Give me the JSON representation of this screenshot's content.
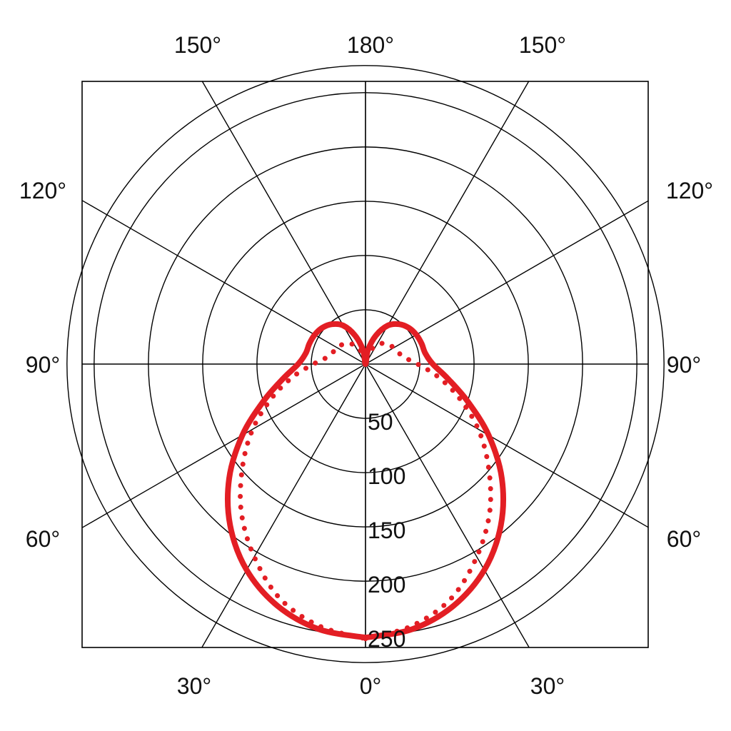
{
  "chart_data": {
    "type": "polar",
    "grid": true,
    "radial_ticks": [
      "50",
      "100",
      "150",
      "200",
      "250"
    ],
    "radial_tick_values": [
      50,
      100,
      150,
      200,
      250
    ],
    "rmax": 250,
    "angle_labels": {
      "top": [
        "150°",
        "180°",
        "150°"
      ],
      "left": [
        "120°",
        "90°",
        "60°"
      ],
      "right": [
        "120°",
        "90°",
        "60°"
      ],
      "bottom": [
        "30°",
        "0°",
        "30°"
      ]
    },
    "spoke_angles_deg": [
      0,
      30,
      60,
      90,
      120,
      150,
      180
    ],
    "series": [
      {
        "style": "solid",
        "color": "#e31e24",
        "angle_deg": [
          0,
          10,
          20,
          30,
          40,
          50,
          60,
          70,
          80,
          90,
          100,
          110,
          120,
          130,
          140,
          150,
          160,
          170,
          180
        ],
        "r": [
          252,
          248,
          237,
          219,
          194,
          164,
          131,
          100,
          77,
          62,
          56,
          55,
          54,
          52,
          48,
          41,
          28,
          13,
          0
        ]
      },
      {
        "style": "dotted",
        "color": "#e31e24",
        "angle_deg": [
          0,
          10,
          20,
          30,
          40,
          50,
          60,
          70,
          80,
          90,
          100,
          110,
          120,
          130,
          140,
          150,
          160,
          170,
          180
        ],
        "r": [
          253,
          245,
          230,
          205,
          178,
          148,
          120,
          92,
          68,
          48,
          36,
          32,
          30,
          28,
          25,
          20,
          13,
          6,
          0
        ]
      }
    ]
  }
}
